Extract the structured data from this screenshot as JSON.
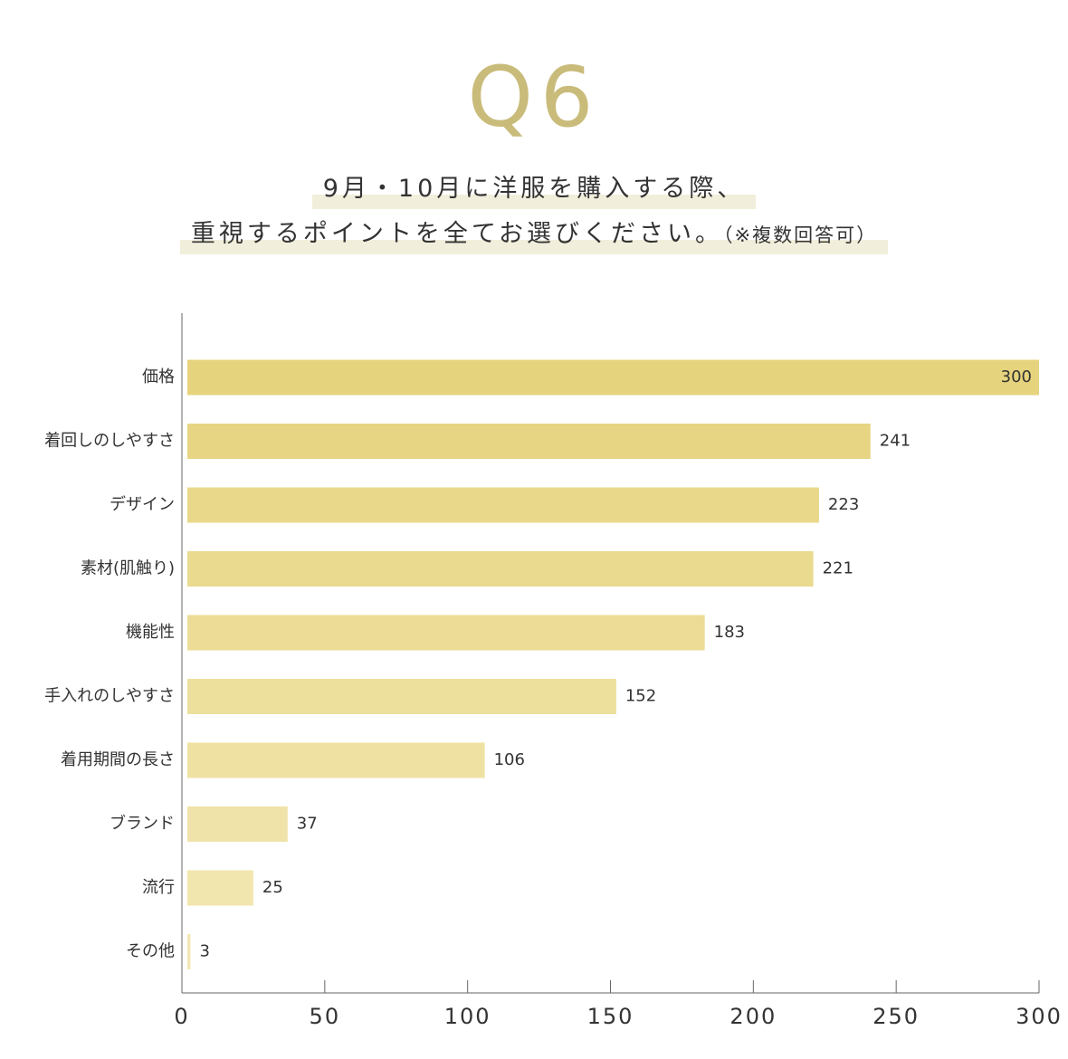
{
  "header": {
    "q_number": "Q6",
    "question_line1": "9月・10月に洋服を購入する際、",
    "question_line2": "重視するポイントを全てお選びください。",
    "question_note": "（※複数回答可）"
  },
  "colors": {
    "accent": "#c9bb7a",
    "highlight": "#f1eedb",
    "bar_dark": "#e6d37d",
    "bar_light": "#f3e8b5",
    "axis": "#666666",
    "text": "#333333"
  },
  "chart_data": {
    "type": "bar",
    "orientation": "horizontal",
    "categories": [
      "価格",
      "着回しのしやすさ",
      "デザイン",
      "素材(肌触り)",
      "機能性",
      "手入れのしやすさ",
      "着用期間の長さ",
      "ブランド",
      "流行",
      "その他"
    ],
    "values": [
      300,
      241,
      223,
      221,
      183,
      152,
      106,
      37,
      25,
      3
    ],
    "data_labels": [
      "300",
      "241",
      "223",
      "221",
      "183",
      "152",
      "106",
      "37",
      "25",
      "3"
    ],
    "x_ticks": [
      0,
      50,
      100,
      150,
      200,
      250,
      300
    ],
    "x_tick_labels": [
      "0",
      "50",
      "100",
      "150",
      "200",
      "250",
      "300"
    ],
    "xlim": [
      0,
      300
    ],
    "grid": false,
    "legend": "none"
  }
}
